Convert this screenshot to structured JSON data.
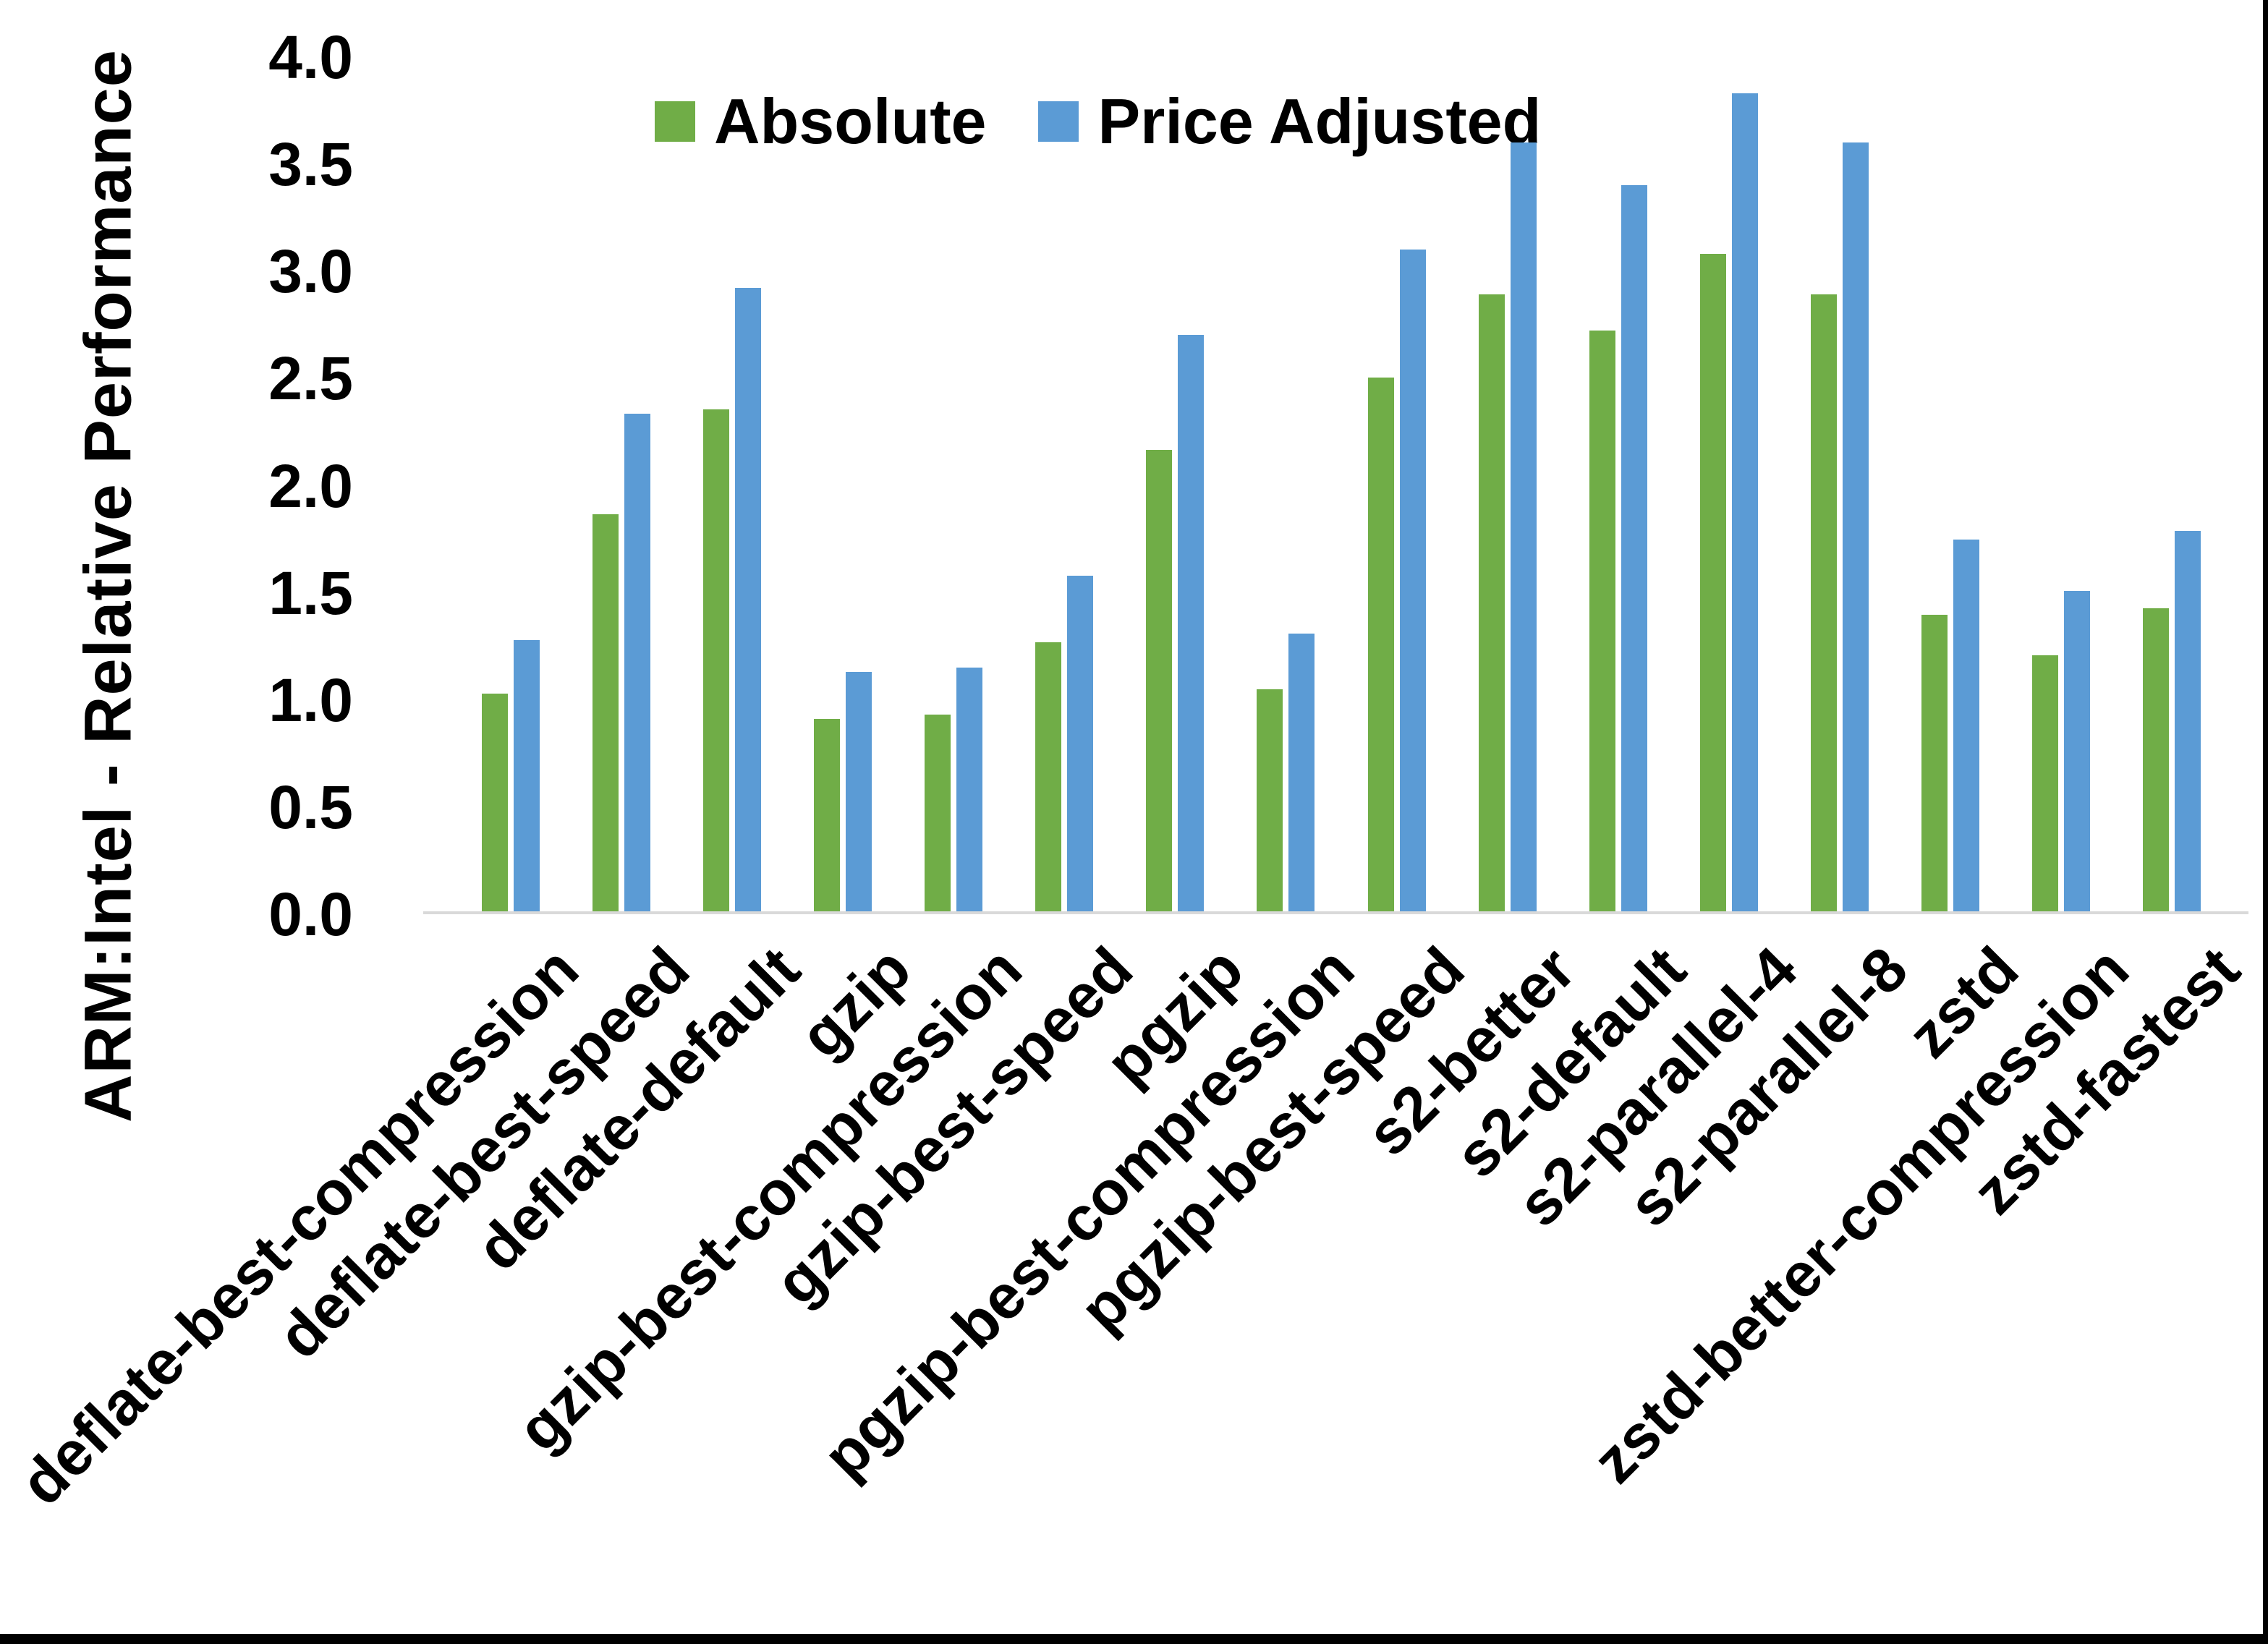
{
  "figure": {
    "background": "#ffffff",
    "frame_border_color": "#000000",
    "axis_line_color": "#d9d9d9"
  },
  "chart_data": {
    "type": "bar",
    "title": "",
    "xlabel": "",
    "ylabel": "ARM:Intel - Relative Performance",
    "ylim": [
      0.0,
      4.0
    ],
    "ytick_step": 0.5,
    "yticks": [
      "4.0",
      "3.5",
      "3.0",
      "2.5",
      "2.0",
      "1.5",
      "1.0",
      "0.5",
      "0.0"
    ],
    "grid": false,
    "legend_position": "top",
    "categories": [
      "deflate-best-compression",
      "deflate-best-speed",
      "deflate-default",
      "gzip",
      "gzip-best-compression",
      "gzip-best-speed",
      "pgzip",
      "pgzip-best-compression",
      "pgzip-best-speed",
      "s2-better",
      "s2-default",
      "s2-parallel-4",
      "s2-parallel-8",
      "zstd",
      "zstd-better-compression",
      "zstd-fastest"
    ],
    "series": [
      {
        "name": "Absolute",
        "color": "#70AD47",
        "values": [
          1.02,
          1.86,
          2.35,
          0.9,
          0.92,
          1.26,
          2.16,
          1.04,
          2.5,
          2.89,
          2.72,
          3.08,
          2.89,
          1.39,
          1.2,
          1.42
        ]
      },
      {
        "name": "Price Adjusted",
        "color": "#5B9BD5",
        "values": [
          1.27,
          2.33,
          2.92,
          1.12,
          1.14,
          1.57,
          2.7,
          1.3,
          3.1,
          3.6,
          3.4,
          3.83,
          3.6,
          1.74,
          1.5,
          1.78
        ]
      }
    ]
  }
}
